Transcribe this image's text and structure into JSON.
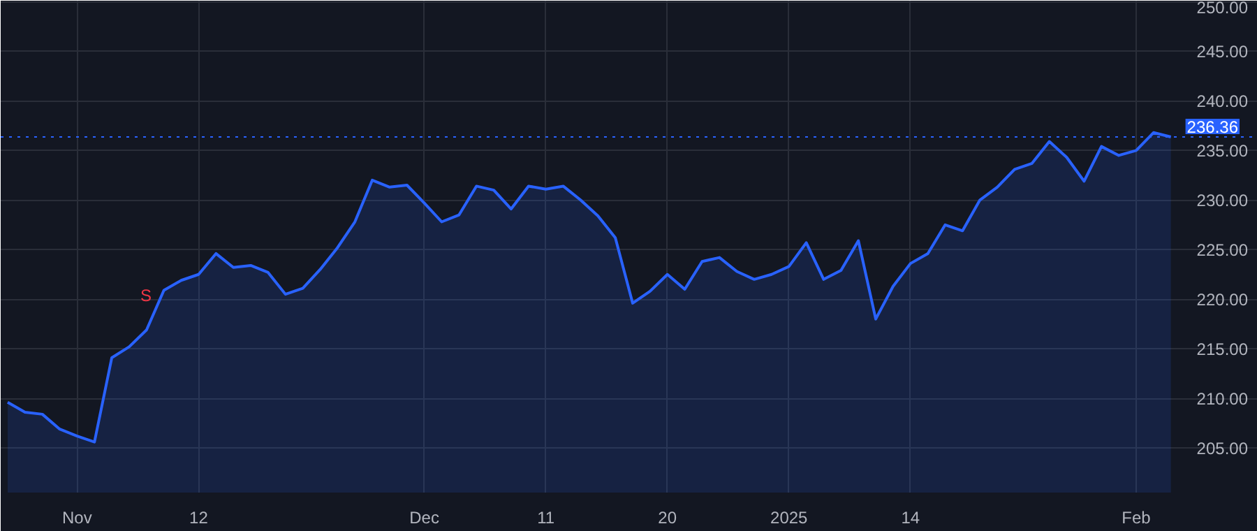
{
  "chart_data": {
    "type": "area",
    "categories": [
      null,
      null,
      null,
      null,
      "Nov",
      null,
      null,
      null,
      null,
      null,
      null,
      "12",
      null,
      null,
      null,
      null,
      null,
      null,
      null,
      null,
      null,
      null,
      null,
      null,
      "Dec",
      null,
      null,
      null,
      null,
      null,
      null,
      "11",
      null,
      null,
      null,
      null,
      null,
      null,
      "20",
      null,
      null,
      null,
      null,
      null,
      null,
      "2025",
      null,
      null,
      null,
      null,
      null,
      null,
      "14",
      null,
      null,
      null,
      null,
      null,
      null,
      null,
      null,
      null,
      null,
      null,
      null,
      "Feb",
      null,
      null
    ],
    "series": [
      {
        "color": "#2962ff",
        "values": [
          209.6,
          208.6,
          208.4,
          206.9,
          206.2,
          205.6,
          214.1,
          215.2,
          216.9,
          220.9,
          221.9,
          222.5,
          224.6,
          223.2,
          223.4,
          222.7,
          220.5,
          221.1,
          223.0,
          225.2,
          227.8,
          232.0,
          231.3,
          231.5,
          229.7,
          227.8,
          228.5,
          231.4,
          231.0,
          229.1,
          231.4,
          231.1,
          231.4,
          230.0,
          228.4,
          226.2,
          219.6,
          220.8,
          222.5,
          221.0,
          223.8,
          224.2,
          222.8,
          222.0,
          222.5,
          223.3,
          225.7,
          222.0,
          222.9,
          225.9,
          218.0,
          221.3,
          223.6,
          224.6,
          227.5,
          226.9,
          230.0,
          231.3,
          233.1,
          233.7,
          235.9,
          234.3,
          231.9,
          235.4,
          234.5,
          235.0,
          236.8,
          236.36
        ]
      }
    ],
    "ylim": [
      200.5,
      250.1
    ],
    "yticks": [
      {
        "value": 205,
        "label": "205.00"
      },
      {
        "value": 210,
        "label": "210.00"
      },
      {
        "value": 215,
        "label": "215.00"
      },
      {
        "value": 220,
        "label": "220.00"
      },
      {
        "value": 225,
        "label": "225.00"
      },
      {
        "value": 230,
        "label": "230.00"
      },
      {
        "value": 235,
        "label": "235.00"
      },
      {
        "value": 240,
        "label": "240.00"
      },
      {
        "value": 245,
        "label": "245.00"
      },
      {
        "value": 250,
        "label": "250.00"
      }
    ],
    "ref_lines": [
      {
        "axis": "y",
        "value": 236.36,
        "label": "236.36",
        "color": "#2962ff",
        "line_style": "dotted"
      }
    ],
    "annotations": [
      "S"
    ],
    "grid": true
  }
}
